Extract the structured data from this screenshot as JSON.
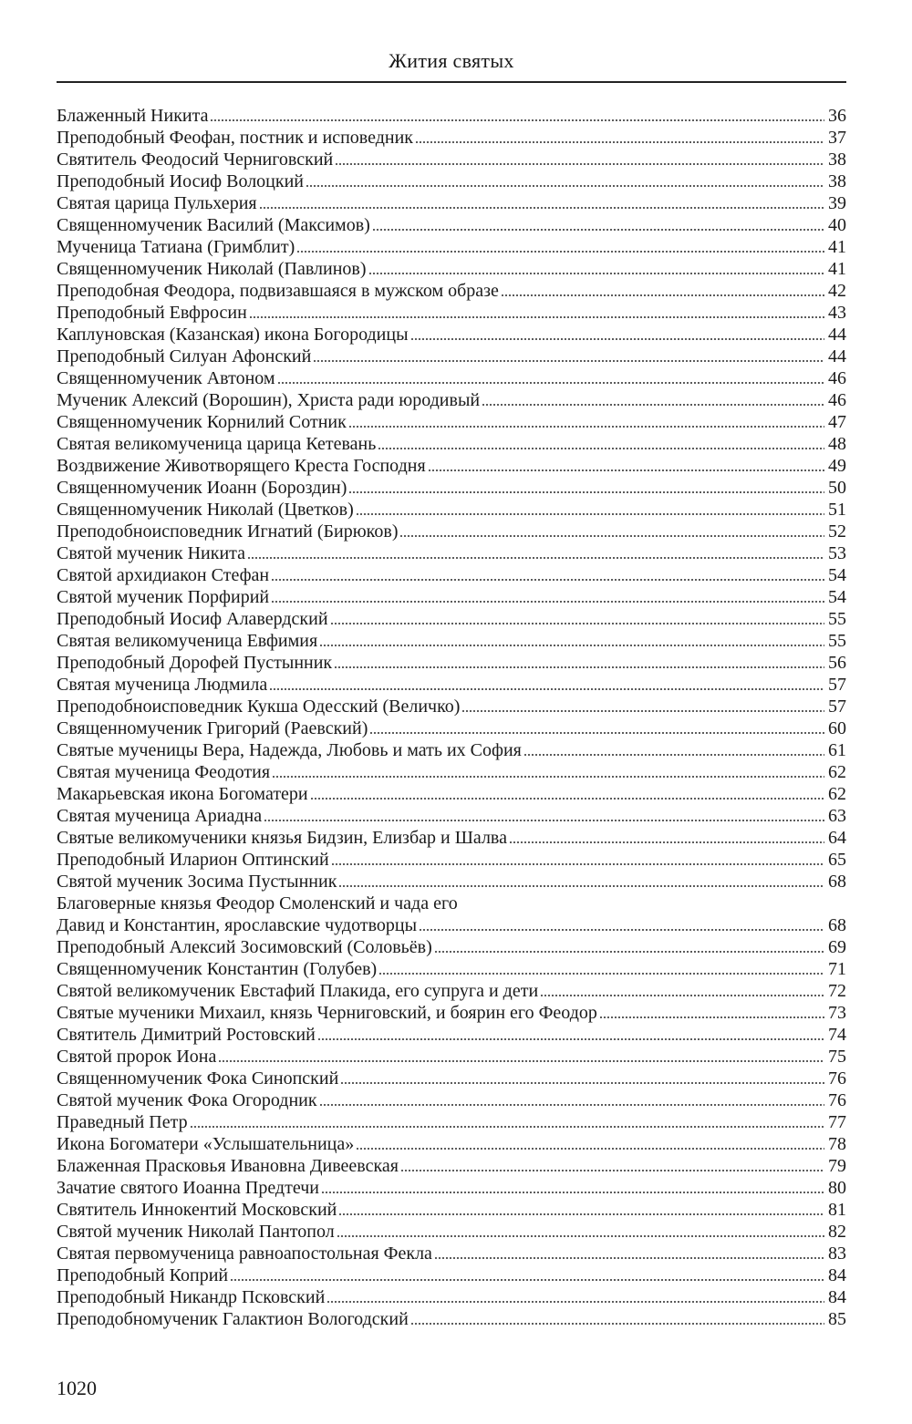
{
  "header": {
    "title": "Жития святых"
  },
  "entries": [
    {
      "title": "Блаженный Никита",
      "page": "36"
    },
    {
      "title": "Преподобный Феофан, постник и исповедник",
      "page": "37"
    },
    {
      "title": "Святитель Феодосий Черниговский",
      "page": "38"
    },
    {
      "title": "Преподобный Иосиф Волоцкий",
      "page": "38"
    },
    {
      "title": "Святая царица Пульхерия",
      "page": "39"
    },
    {
      "title": "Священномученик Василий (Максимов)",
      "page": "40"
    },
    {
      "title": "Мученица Татиана (Гримблит)",
      "page": "41"
    },
    {
      "title": "Священномученик Николай (Павлинов)",
      "page": "41"
    },
    {
      "title": "Преподобная Феодора, подвизавшаяся в мужском образе",
      "page": "42"
    },
    {
      "title": "Преподобный Евфросин",
      "page": "43"
    },
    {
      "title": "Каплуновская (Казанская) икона Богородицы",
      "page": "44"
    },
    {
      "title": "Преподобный Силуан Афонский",
      "page": "44"
    },
    {
      "title": "Священномученик Автоном",
      "page": "46"
    },
    {
      "title": "Мученик Алексий (Ворошин), Христа ради юродивый",
      "page": "46"
    },
    {
      "title": "Священномученик Корнилий Сотник",
      "page": "47"
    },
    {
      "title": "Святая великомученица царица Кетевань",
      "page": "48"
    },
    {
      "title": "Воздвижение Животворящего Креста Господня",
      "page": "49"
    },
    {
      "title": "Священномученик Иоанн (Бороздин)",
      "page": "50"
    },
    {
      "title": "Священномученик Николай (Цветков)",
      "page": "51"
    },
    {
      "title": "Преподобноисповедник Игнатий (Бирюков)",
      "page": "52"
    },
    {
      "title": "Святой мученик Никита",
      "page": "53"
    },
    {
      "title": "Святой архидиакон Стефан",
      "page": "54"
    },
    {
      "title": "Святой мученик Порфирий",
      "page": "54"
    },
    {
      "title": "Преподобный Иосиф Алавердский",
      "page": "55"
    },
    {
      "title": "Святая великомученица Евфимия",
      "page": "55"
    },
    {
      "title": "Преподобный Дорофей Пустынник",
      "page": "56"
    },
    {
      "title": "Святая мученица Людмила",
      "page": "57"
    },
    {
      "title": "Преподобноисповедник Кукша Одесский (Величко)",
      "page": "57"
    },
    {
      "title": "Священномученик Григорий (Раевский)",
      "page": "60"
    },
    {
      "title": "Святые мученицы Вера, Надежда, Любовь и мать их София",
      "page": "61"
    },
    {
      "title": "Святая мученица Феодотия",
      "page": "62"
    },
    {
      "title": "Макарьевская икона Богоматери",
      "page": "62"
    },
    {
      "title": "Святая мученица Ариадна",
      "page": "63"
    },
    {
      "title": "Святые великомученики князья Бидзин, Елизбар и Шалва",
      "page": "64"
    },
    {
      "title": "Преподобный Иларион Оптинский",
      "page": "65"
    },
    {
      "title": "Святой мученик Зосима Пустынник",
      "page": "68"
    },
    {
      "title": "Благоверные князья Феодор Смоленский и чада его",
      "page": ""
    },
    {
      "title": "Давид и Константин, ярославские чудотворцы",
      "page": "68"
    },
    {
      "title": "Преподобный Алексий Зосимовский (Соловьёв)",
      "page": "69"
    },
    {
      "title": "Священномученик Константин (Голубев)",
      "page": "71"
    },
    {
      "title": "Святой великомученик Евстафий Плакида, его супруга и дети",
      "page": "72"
    },
    {
      "title": "Святые мученики Михаил, князь Черниговский, и боярин его Феодор",
      "page": "73"
    },
    {
      "title": "Святитель Димитрий Ростовский",
      "page": "74"
    },
    {
      "title": "Святой пророк Иона",
      "page": "75"
    },
    {
      "title": "Священномученик Фока Синопский",
      "page": "76"
    },
    {
      "title": "Святой мученик Фока Огородник",
      "page": "76"
    },
    {
      "title": "Праведный Петр",
      "page": "77"
    },
    {
      "title": "Икона Богоматери «Услышательница»",
      "page": "78"
    },
    {
      "title": "Блаженная Прасковья Ивановна Дивеевская",
      "page": "79"
    },
    {
      "title": "Зачатие святого Иоанна Предтечи",
      "page": "80"
    },
    {
      "title": "Святитель Иннокентий Московский",
      "page": "81"
    },
    {
      "title": "Святой мученик Николай Пантопол",
      "page": "82"
    },
    {
      "title": "Святая первомученица равноапостольная Фекла",
      "page": "83"
    },
    {
      "title": "Преподобный Коприй",
      "page": "84"
    },
    {
      "title": "Преподобный Никандр Псковский",
      "page": "84"
    },
    {
      "title": "Преподобномученик Галактион Вологодский",
      "page": "85"
    }
  ],
  "footer": {
    "page_number": "1020"
  }
}
